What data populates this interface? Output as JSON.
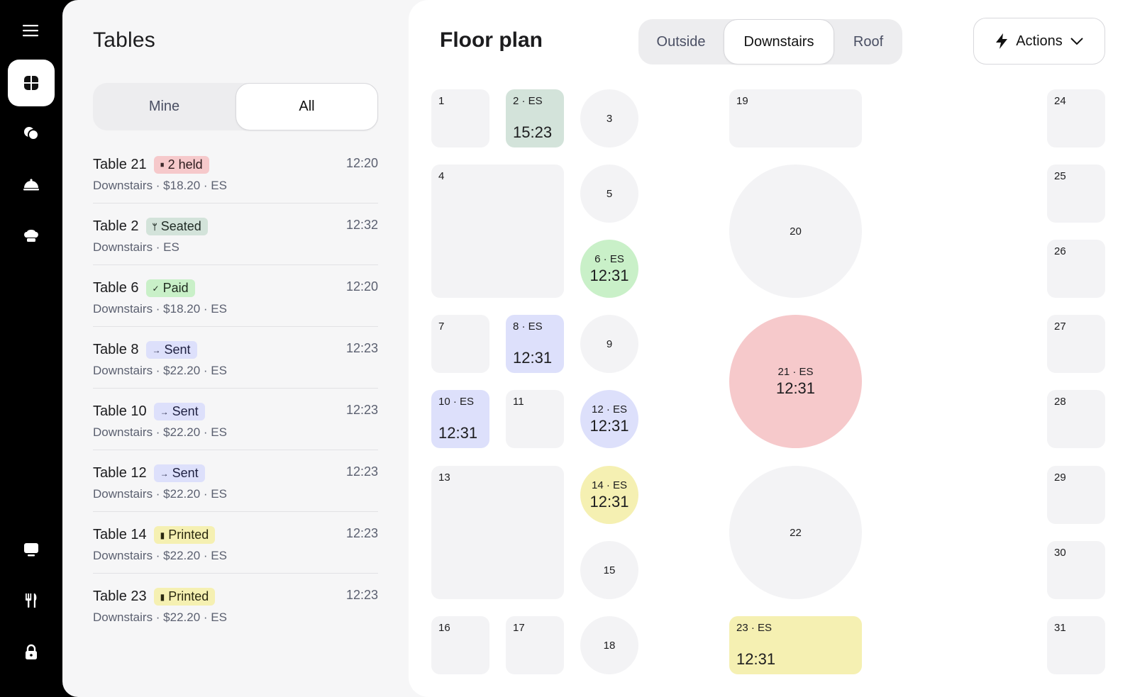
{
  "rail": {
    "items": [
      {
        "name": "menu-icon"
      },
      {
        "name": "floor-plan-icon",
        "active": true
      },
      {
        "name": "bubbles-icon"
      },
      {
        "name": "cloche-icon"
      },
      {
        "name": "chef-hat-icon"
      },
      {
        "name": "kiosk-icon"
      },
      {
        "name": "utensils-icon"
      },
      {
        "name": "lock-icon"
      }
    ]
  },
  "tables": {
    "title": "Tables",
    "filter": {
      "mine": "Mine",
      "all": "All",
      "selected": "All"
    },
    "items": [
      {
        "title": "Table 21",
        "badge": "2 held",
        "badge_icon": "pause-icon",
        "badge_glyph": "⏸",
        "badge_bg": "#f6c9cb",
        "badge_fg": "#2b1a1c",
        "sub": "Downstairs · $18.20 · ES",
        "time": "12:20"
      },
      {
        "title": "Table 2",
        "badge": "Seated",
        "badge_icon": "fork-knife-icon",
        "badge_glyph": "ᛘ",
        "badge_bg": "#d3e3da",
        "badge_fg": "#1f2a24",
        "sub": "Downstairs · ES",
        "time": "12:32"
      },
      {
        "title": "Table 6",
        "badge": "Paid",
        "badge_icon": "check-icon",
        "badge_glyph": "✓",
        "badge_bg": "#c9f0c8",
        "badge_fg": "#1f2a1f",
        "sub": "Downstairs · $18.20 · ES",
        "time": "12:20"
      },
      {
        "title": "Table 8",
        "badge": "Sent",
        "badge_icon": "arrow-right-icon",
        "badge_glyph": "→",
        "badge_bg": "#dde0fb",
        "badge_fg": "#1e2040",
        "sub": "Downstairs · $22.20 · ES",
        "time": "12:23"
      },
      {
        "title": "Table 10",
        "badge": "Sent",
        "badge_icon": "arrow-right-icon",
        "badge_glyph": "→",
        "badge_bg": "#dde0fb",
        "badge_fg": "#1e2040",
        "sub": "Downstairs · $22.20 · ES",
        "time": "12:23"
      },
      {
        "title": "Table 12",
        "badge": "Sent",
        "badge_icon": "arrow-right-icon",
        "badge_glyph": "→",
        "badge_bg": "#dde0fb",
        "badge_fg": "#1e2040",
        "sub": "Downstairs · $22.20 · ES",
        "time": "12:23"
      },
      {
        "title": "Table 14",
        "badge": "Printed",
        "badge_icon": "document-icon",
        "badge_glyph": "▮",
        "badge_bg": "#f5f0b2",
        "badge_fg": "#2a2810",
        "sub": "Downstairs · $22.20 · ES",
        "time": "12:23"
      },
      {
        "title": "Table 23",
        "badge": "Printed",
        "badge_icon": "document-icon",
        "badge_glyph": "▮",
        "badge_bg": "#f5f0b2",
        "badge_fg": "#2a2810",
        "sub": "Downstairs · $22.20 · ES",
        "time": "12:23"
      }
    ]
  },
  "floor": {
    "title": "Floor plan",
    "areas": [
      "Outside",
      "Downstairs",
      "Roof"
    ],
    "selected_area": "Downstairs",
    "actions_label": "Actions",
    "colors": {
      "empty": "#f3f3f5",
      "seated": "#d3e3da",
      "paid": "#c9f0c8",
      "sent": "#dde0fb",
      "held": "#f6c9cb",
      "printed": "#f5f0b2"
    },
    "tables": [
      {
        "label": "1"
      },
      {
        "label": "2 · ES",
        "time": "15:23",
        "status": "seated"
      },
      {
        "label": "3"
      },
      {
        "label": "4"
      },
      {
        "label": "5"
      },
      {
        "label": "6 · ES",
        "time": "12:31",
        "status": "paid"
      },
      {
        "label": "7"
      },
      {
        "label": "8 · ES",
        "time": "12:31",
        "status": "sent"
      },
      {
        "label": "9"
      },
      {
        "label": "10 · ES",
        "time": "12:31",
        "status": "sent"
      },
      {
        "label": "11"
      },
      {
        "label": "12 · ES",
        "time": "12:31",
        "status": "sent"
      },
      {
        "label": "13"
      },
      {
        "label": "14 · ES",
        "time": "12:31",
        "status": "printed"
      },
      {
        "label": "15"
      },
      {
        "label": "16"
      },
      {
        "label": "17"
      },
      {
        "label": "18"
      },
      {
        "label": "19"
      },
      {
        "label": "20"
      },
      {
        "label": "21 · ES",
        "time": "12:31",
        "status": "held"
      },
      {
        "label": "22"
      },
      {
        "label": "23 · ES",
        "time": "12:31",
        "status": "printed"
      },
      {
        "label": "24"
      },
      {
        "label": "25"
      },
      {
        "label": "26"
      },
      {
        "label": "27"
      },
      {
        "label": "28"
      },
      {
        "label": "29"
      },
      {
        "label": "30"
      },
      {
        "label": "31"
      }
    ]
  }
}
